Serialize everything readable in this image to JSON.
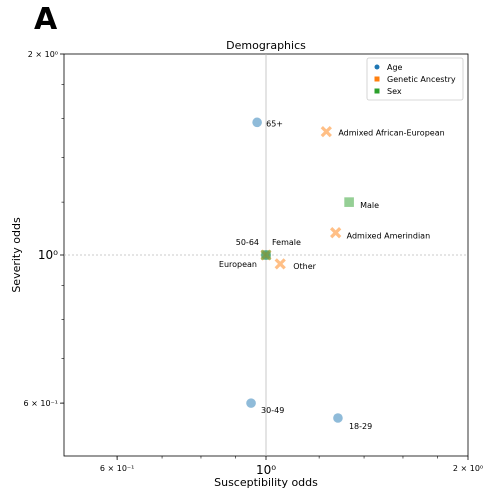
{
  "panel_label": "A",
  "chart_data": {
    "type": "scatter",
    "title": "Demographics",
    "xlabel": "Susceptibility odds",
    "ylabel": "Severity odds",
    "xscale": "log",
    "yscale": "log",
    "xlim": [
      0.5,
      2.0
    ],
    "ylim": [
      0.5,
      2.0
    ],
    "grid": false,
    "reference_lines": {
      "x": 1.0,
      "y": 1.0
    },
    "legend_position": "top-right",
    "x_ticks": [
      {
        "value": 0.6,
        "label": "6 × 10⁻¹"
      },
      {
        "value": 1.0,
        "label": "10⁰"
      },
      {
        "value": 2.0,
        "label": "2 × 10⁰"
      }
    ],
    "y_ticks": [
      {
        "value": 0.6,
        "label": "6 × 10⁻¹"
      },
      {
        "value": 1.0,
        "label": "10⁰"
      },
      {
        "value": 2.0,
        "label": "2 × 10⁰"
      }
    ],
    "series": [
      {
        "name": "Age",
        "color": "#1f77b4",
        "marker": "circle",
        "points": [
          {
            "label": "65+",
            "x": 0.97,
            "y": 1.58
          },
          {
            "label": "50-64",
            "x": 1.0,
            "y": 1.0
          },
          {
            "label": "30-49",
            "x": 0.95,
            "y": 0.6
          },
          {
            "label": "18-29",
            "x": 1.28,
            "y": 0.57
          }
        ]
      },
      {
        "name": "Genetic Ancestry",
        "color": "#ff7f0e",
        "marker": "x",
        "points": [
          {
            "label": "Admixed African-European",
            "x": 1.23,
            "y": 1.53
          },
          {
            "label": "Admixed Amerindian",
            "x": 1.27,
            "y": 1.08
          },
          {
            "label": "European",
            "x": 1.0,
            "y": 1.0
          },
          {
            "label": "Other",
            "x": 1.05,
            "y": 0.97
          }
        ]
      },
      {
        "name": "Sex",
        "color": "#2ca02c",
        "marker": "square",
        "points": [
          {
            "label": "Male",
            "x": 1.33,
            "y": 1.2
          },
          {
            "label": "Female",
            "x": 1.0,
            "y": 1.0
          }
        ]
      }
    ]
  }
}
